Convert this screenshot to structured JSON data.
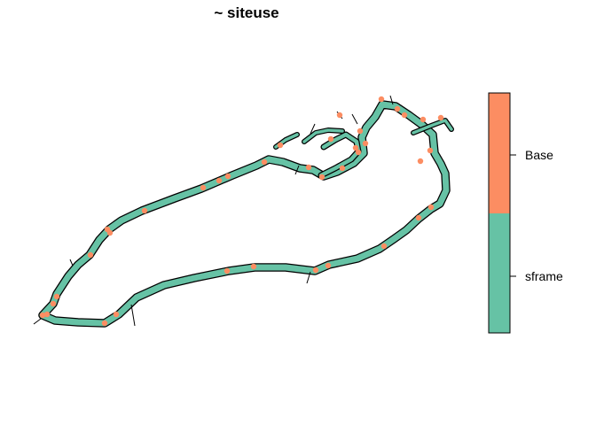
{
  "title": "~ siteuse",
  "legend": {
    "categories": [
      {
        "label": "Base",
        "color": "#FC8D62"
      },
      {
        "label": "sframe",
        "color": "#66C2A5"
      }
    ]
  },
  "colors": {
    "shoreline_band": "#66C2A5",
    "base_site": "#FC8D62",
    "outline": "#000000"
  }
}
